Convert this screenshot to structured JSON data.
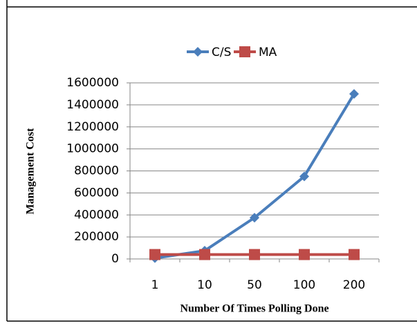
{
  "chart_data": {
    "type": "line",
    "categories": [
      "1",
      "10",
      "50",
      "100",
      "200"
    ],
    "series": [
      {
        "name": "C/S",
        "color": "#4a7ebb",
        "marker": "diamond",
        "values": [
          7500,
          75000,
          375000,
          750000,
          1500000
        ]
      },
      {
        "name": "MA",
        "color": "#be4b48",
        "marker": "square",
        "values": [
          40000,
          40000,
          40000,
          40000,
          40000
        ]
      }
    ],
    "ylim": [
      0,
      1600000
    ],
    "yticks": [
      0,
      200000,
      400000,
      600000,
      800000,
      1000000,
      1200000,
      1400000,
      1600000
    ],
    "xlabel": "Number Of Times Polling Done",
    "ylabel": "Management Cost",
    "grid": true,
    "legend": "top"
  }
}
